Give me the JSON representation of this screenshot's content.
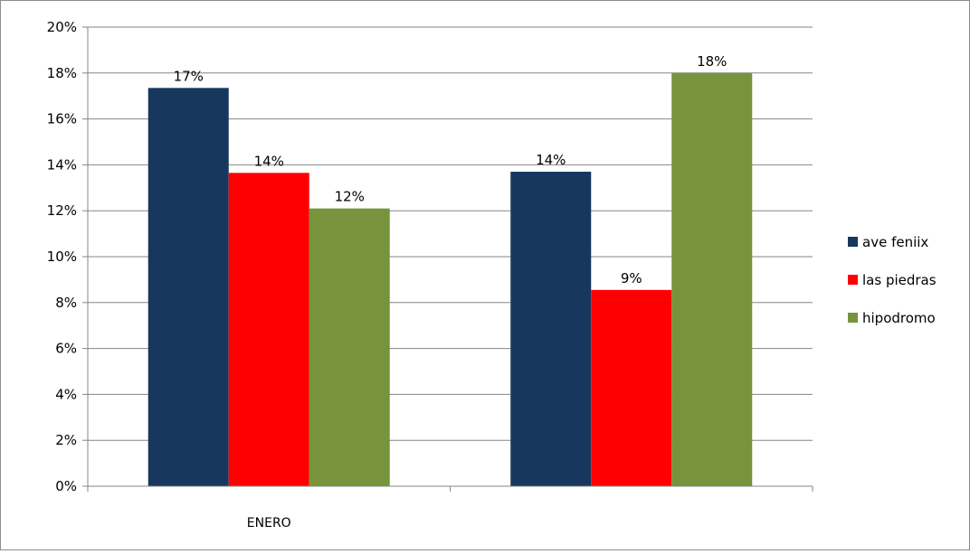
{
  "chart_data": {
    "type": "bar",
    "title": "",
    "xlabel": "",
    "ylabel": "",
    "categories": [
      "ENERO",
      ""
    ],
    "series": [
      {
        "name": "ave feniix",
        "color": "#17375E",
        "values": [
          17.35,
          13.7
        ],
        "labels": [
          "17%",
          "14%"
        ]
      },
      {
        "name": "las piedras",
        "color": "#FF0000",
        "values": [
          13.65,
          8.55
        ],
        "labels": [
          "14%",
          "9%"
        ]
      },
      {
        "name": "hipodromo",
        "color": "#77933C",
        "values": [
          12.1,
          18.0
        ],
        "labels": [
          "12%",
          "18%"
        ]
      }
    ],
    "ylim": [
      0,
      20
    ],
    "ytick_step": 2,
    "ytick_labels": [
      "0%",
      "2%",
      "4%",
      "6%",
      "8%",
      "10%",
      "12%",
      "14%",
      "16%",
      "18%",
      "20%"
    ],
    "grid": true,
    "legend_position": "right"
  }
}
